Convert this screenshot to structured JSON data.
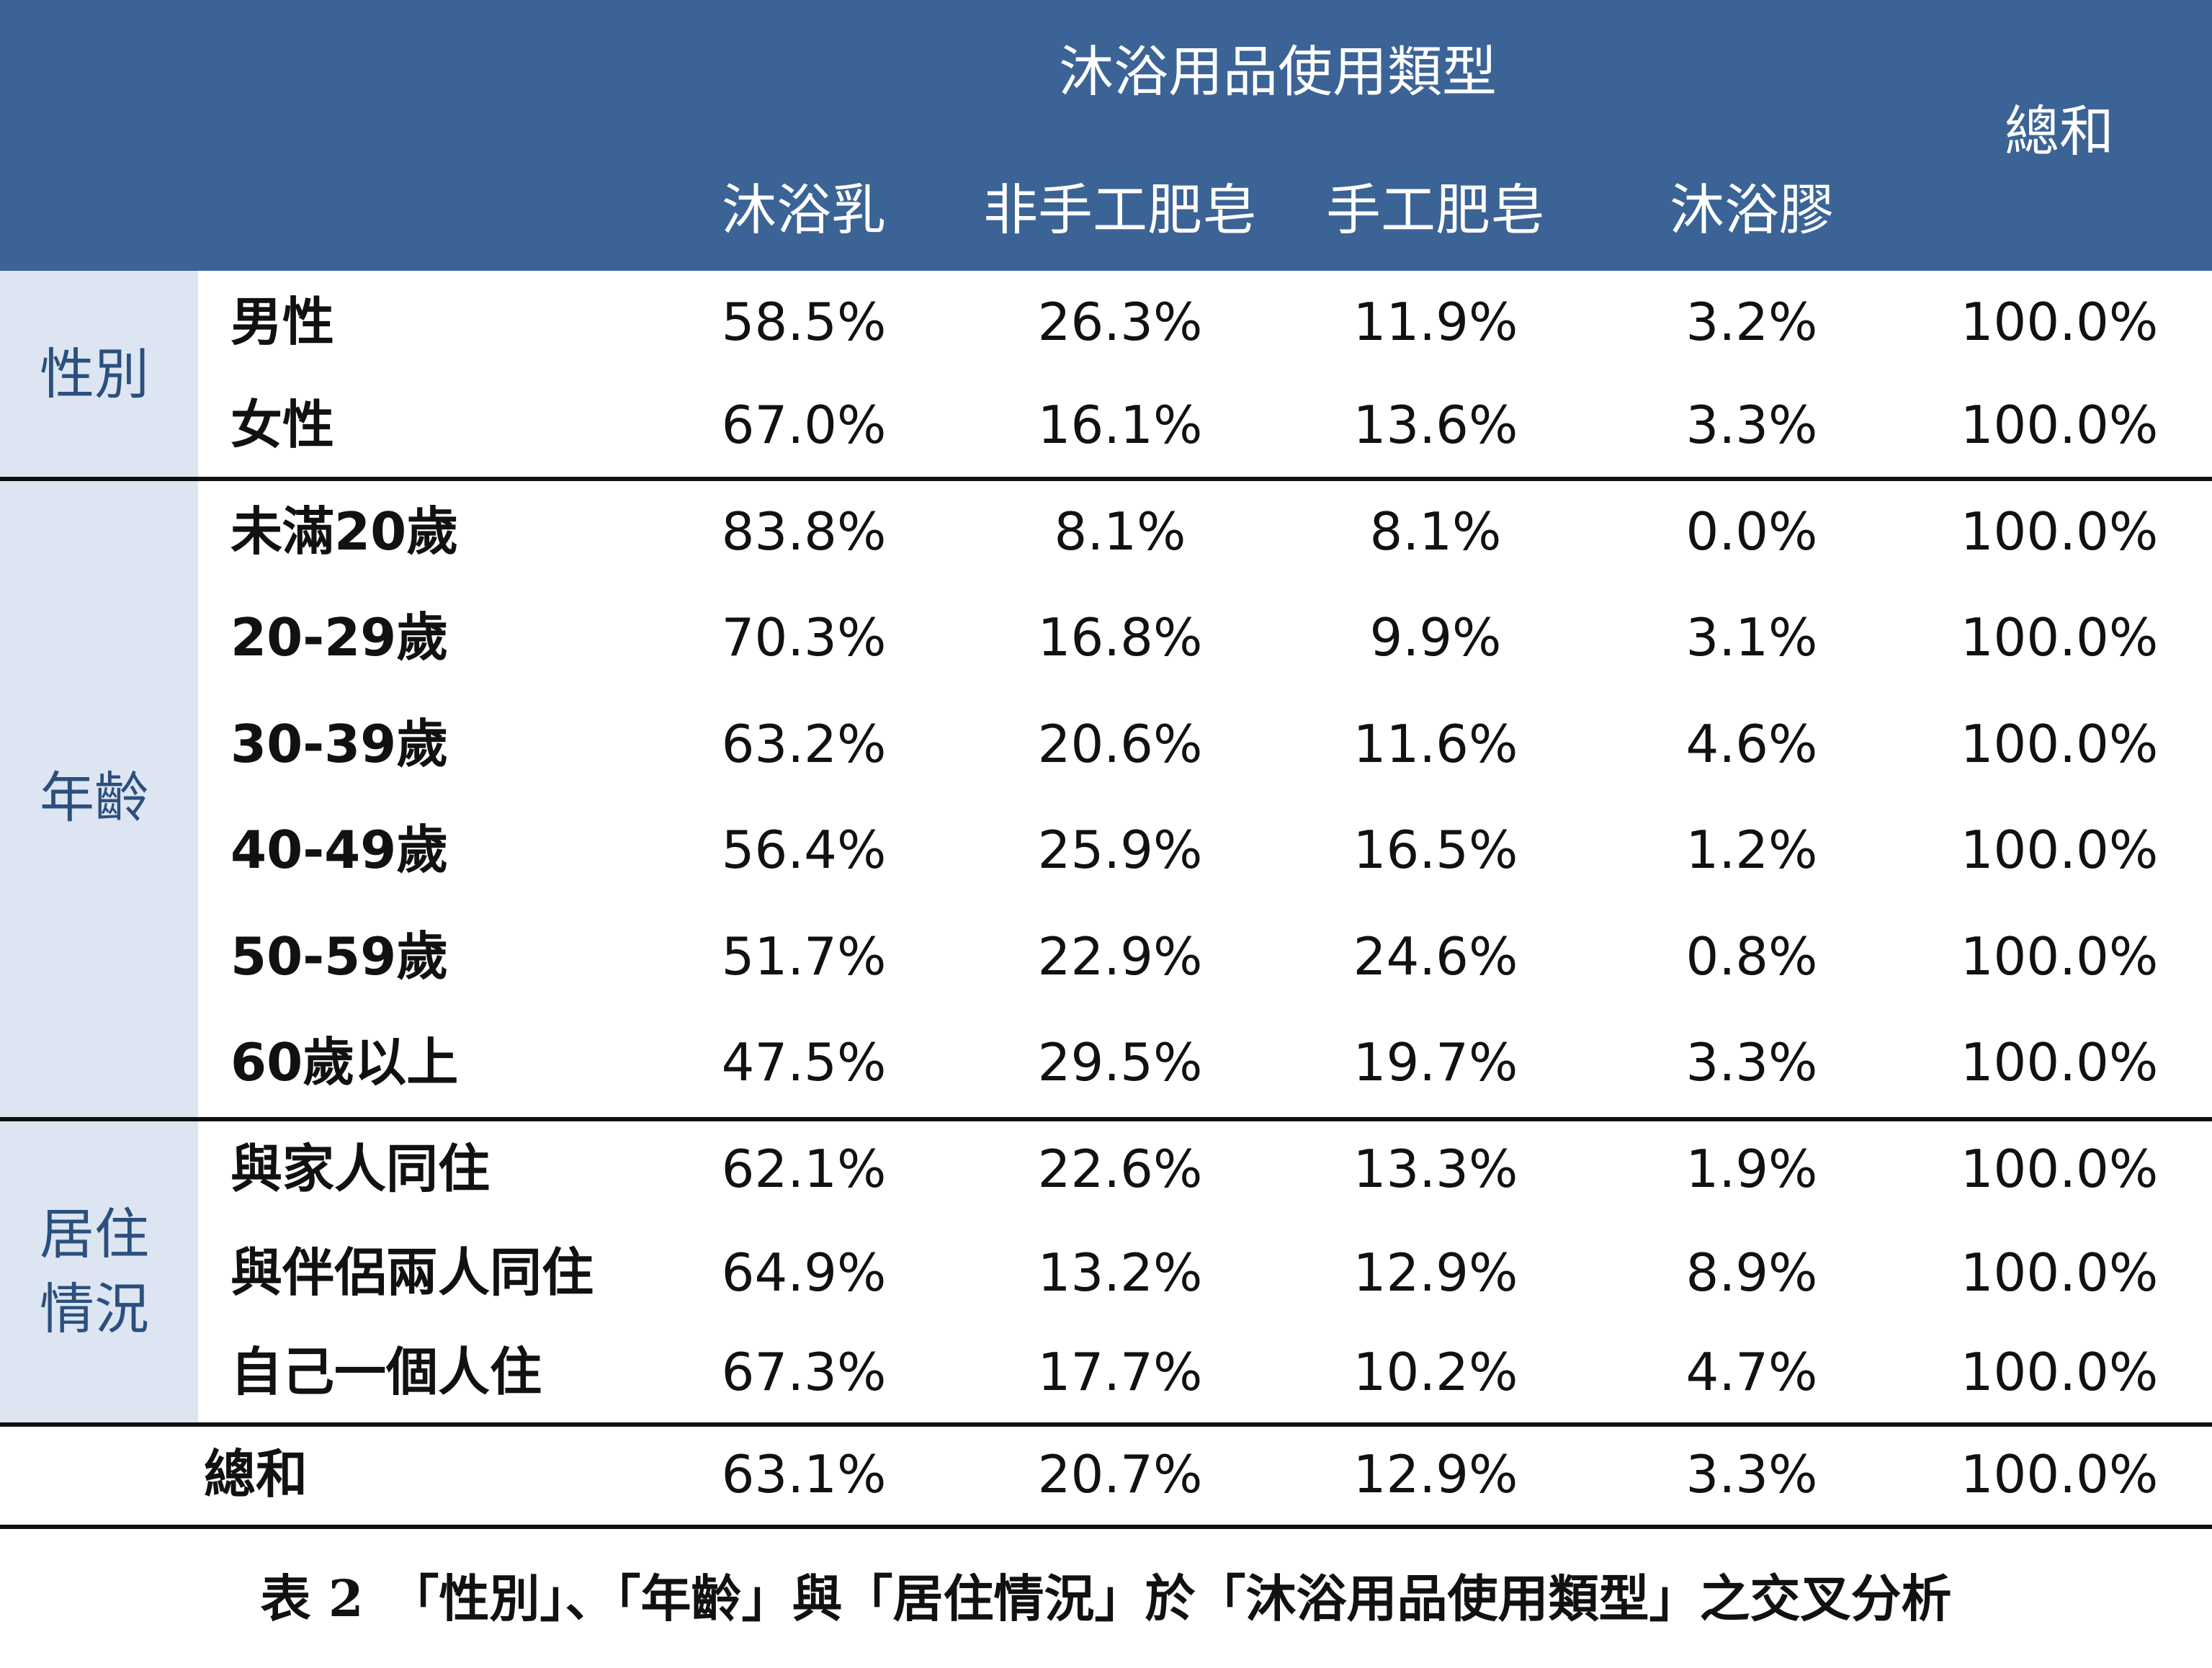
{
  "header": {
    "group_title": "沐浴用品使用類型",
    "columns": [
      "沐浴乳",
      "非手工肥皂",
      "手工肥皂",
      "沐浴膠"
    ],
    "total_label": "總和"
  },
  "groups": [
    {
      "label_lines": [
        "性別"
      ],
      "rows": [
        {
          "label": "男性",
          "values": [
            "58.5%",
            "26.3%",
            "11.9%",
            "3.2%",
            "100.0%"
          ]
        },
        {
          "label": "女性",
          "values": [
            "67.0%",
            "16.1%",
            "13.6%",
            "3.3%",
            "100.0%"
          ]
        }
      ]
    },
    {
      "label_lines": [
        "年齡"
      ],
      "rows": [
        {
          "label": "未滿20歲",
          "values": [
            "83.8%",
            "8.1%",
            "8.1%",
            "0.0%",
            "100.0%"
          ]
        },
        {
          "label": "20-29歲",
          "values": [
            "70.3%",
            "16.8%",
            "9.9%",
            "3.1%",
            "100.0%"
          ]
        },
        {
          "label": "30-39歲",
          "values": [
            "63.2%",
            "20.6%",
            "11.6%",
            "4.6%",
            "100.0%"
          ]
        },
        {
          "label": "40-49歲",
          "values": [
            "56.4%",
            "25.9%",
            "16.5%",
            "1.2%",
            "100.0%"
          ]
        },
        {
          "label": "50-59歲",
          "values": [
            "51.7%",
            "22.9%",
            "24.6%",
            "0.8%",
            "100.0%"
          ]
        },
        {
          "label": "60歲以上",
          "values": [
            "47.5%",
            "29.5%",
            "19.7%",
            "3.3%",
            "100.0%"
          ]
        }
      ]
    },
    {
      "label_lines": [
        "居住",
        "情況"
      ],
      "rows": [
        {
          "label": "與家人同住",
          "values": [
            "62.1%",
            "22.6%",
            "13.3%",
            "1.9%",
            "100.0%"
          ]
        },
        {
          "label": "與伴侶兩人同住",
          "values": [
            "64.9%",
            "13.2%",
            "12.9%",
            "8.9%",
            "100.0%"
          ]
        },
        {
          "label": "自己一個人住",
          "values": [
            "67.3%",
            "17.7%",
            "10.2%",
            "4.7%",
            "100.0%"
          ]
        }
      ]
    }
  ],
  "total_row": {
    "label": "總和",
    "values": [
      "63.1%",
      "20.7%",
      "12.9%",
      "3.3%",
      "100.0%"
    ]
  },
  "caption": "表 2　「性別」、「年齡」與「居住情況」於「沐浴用品使用類型」之交叉分析",
  "colors": {
    "header_bg": "#3b6396",
    "category_bg": "#dce5f1",
    "category_text": "#2b4f7e"
  }
}
